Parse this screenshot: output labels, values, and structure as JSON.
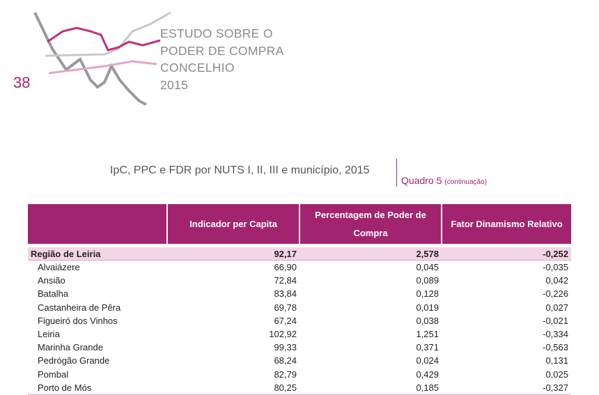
{
  "header": {
    "page_number": "38",
    "title_lines": [
      "ESTUDO SOBRE O",
      "PODER DE COMPRA",
      "CONCELHIO",
      "2015"
    ]
  },
  "caption": {
    "text": "IpC, PPC e FDR por NUTS I, II, III e município, 2015",
    "label": "Quadro 5",
    "note": "(continuação)"
  },
  "table": {
    "columns": [
      "Indicador per Capita",
      "Percentagem de Poder de Compra",
      "Fator Dinamismo Relativo"
    ],
    "region": [
      "Região de Leiria",
      "92,17",
      "2,578",
      "-0,252"
    ],
    "rows": [
      [
        "Alvaiázere",
        "66,90",
        "0,045",
        "-0,035"
      ],
      [
        "Ansião",
        "72,84",
        "0,089",
        "0,042"
      ],
      [
        "Batalha",
        "83,84",
        "0,128",
        "-0,226"
      ],
      [
        "Castanheira de Pêra",
        "69,78",
        "0,019",
        "0,027"
      ],
      [
        "Figueiró dos Vinhos",
        "67,24",
        "0,038",
        "-0,021"
      ],
      [
        "Leiria",
        "102,92",
        "1,251",
        "-0,334"
      ],
      [
        "Marinha Grande",
        "99,33",
        "0,371",
        "-0,563"
      ],
      [
        "Pedrógão Grande",
        "68,24",
        "0,024",
        "0,131"
      ],
      [
        "Pombal",
        "82,79",
        "0,429",
        "0,025"
      ],
      [
        "Porto de Mós",
        "80,25",
        "0,185",
        "-0,327"
      ]
    ]
  }
}
